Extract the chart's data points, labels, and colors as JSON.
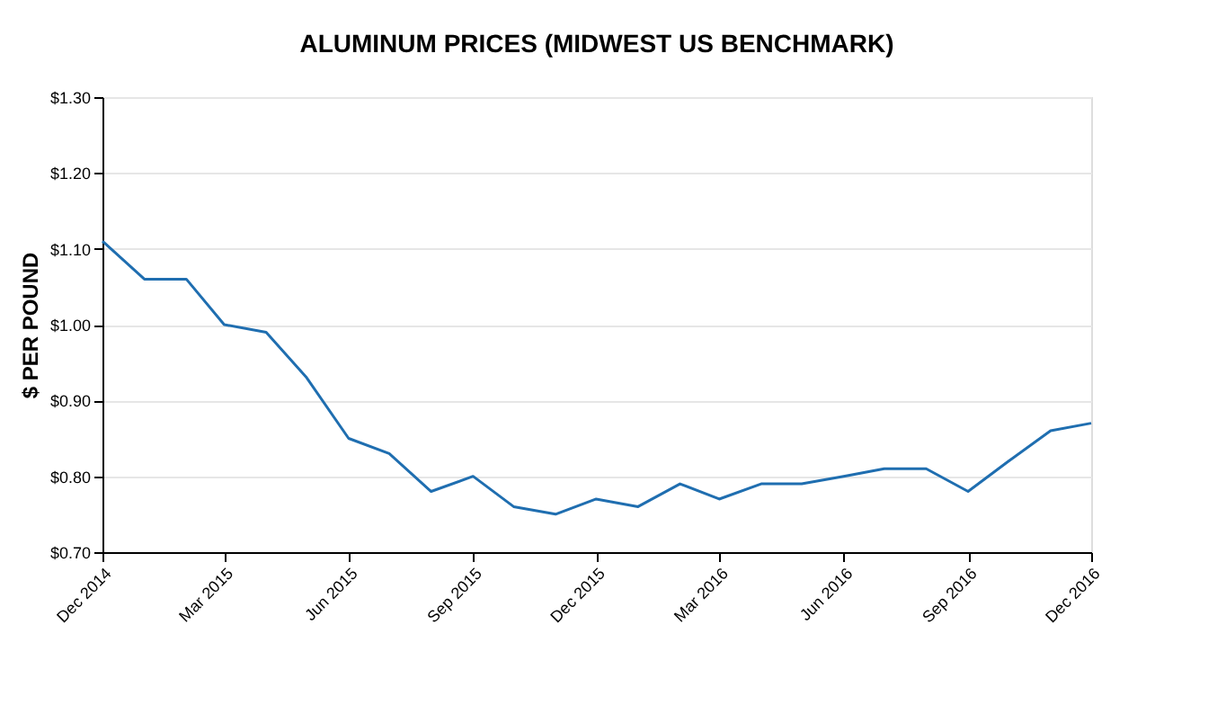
{
  "chart_data": {
    "type": "line",
    "title": "ALUMINUM PRICES (MIDWEST US BENCHMARK)",
    "ylabel": "$ PER POUND",
    "x": [
      "2014-12",
      "2015-01",
      "2015-02",
      "2015-03",
      "2015-04",
      "2015-05",
      "2015-06",
      "2015-07",
      "2015-08",
      "2015-09",
      "2015-10",
      "2015-11",
      "2015-12",
      "2016-01",
      "2016-02",
      "2016-03",
      "2016-04",
      "2016-05",
      "2016-06",
      "2016-07",
      "2016-08",
      "2016-09",
      "2016-10",
      "2016-11",
      "2016-12"
    ],
    "series": [
      {
        "color": "#1f6eb0",
        "values": [
          1.11,
          1.06,
          1.06,
          1.0,
          0.99,
          0.93,
          0.85,
          0.83,
          0.78,
          0.8,
          0.76,
          0.75,
          0.77,
          0.76,
          0.79,
          0.77,
          0.79,
          0.79,
          0.8,
          0.81,
          0.81,
          0.78,
          0.82,
          0.86,
          0.87
        ]
      }
    ],
    "xlim": [
      "2014-12",
      "2016-12"
    ],
    "xticks": [
      {
        "value": "2014-12",
        "label": "Dec 2014"
      },
      {
        "value": "2015-03",
        "label": "Mar 2015"
      },
      {
        "value": "2015-06",
        "label": "Jun 2015"
      },
      {
        "value": "2015-09",
        "label": "Sep 2015"
      },
      {
        "value": "2015-12",
        "label": "Dec 2015"
      },
      {
        "value": "2016-03",
        "label": "Mar 2016"
      },
      {
        "value": "2016-06",
        "label": "Jun 2016"
      },
      {
        "value": "2016-09",
        "label": "Sep 2016"
      },
      {
        "value": "2016-12",
        "label": "Dec 2016"
      }
    ],
    "ylim": [
      0.7,
      1.3
    ],
    "yticks": [
      {
        "value": 0.7,
        "label": "$0.70"
      },
      {
        "value": 0.8,
        "label": "$0.80"
      },
      {
        "value": 0.9,
        "label": "$0.90"
      },
      {
        "value": 1.0,
        "label": "$1.00"
      },
      {
        "value": 1.1,
        "label": "$1.10"
      },
      {
        "value": 1.2,
        "label": "$1.20"
      },
      {
        "value": 1.3,
        "label": "$1.30"
      }
    ],
    "grid": "y",
    "marker": "none",
    "line_style": "solid"
  }
}
